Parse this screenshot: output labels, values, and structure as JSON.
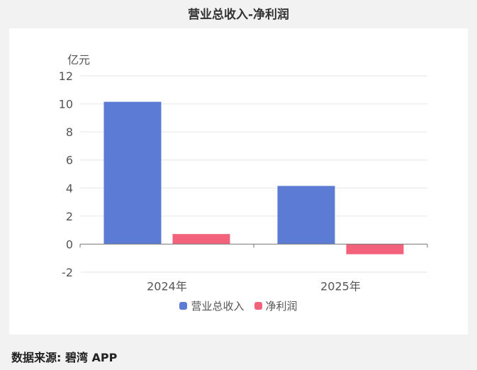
{
  "title": "营业总收入-净利润",
  "source_label": "数据来源: 碧湾 APP",
  "chart_data": {
    "type": "bar",
    "title": "营业总收入-净利润",
    "ylabel": "亿元",
    "xlabel": "",
    "categories": [
      "2024年",
      "2025年"
    ],
    "series": [
      {
        "name": "营业总收入",
        "values": [
          10.15,
          4.15
        ],
        "color": "#5b7bd5"
      },
      {
        "name": "净利润",
        "values": [
          0.72,
          -0.72
        ],
        "color": "#f2637b"
      }
    ],
    "ylim": [
      -2,
      12
    ],
    "yticks": [
      -2,
      0,
      2,
      4,
      6,
      8,
      10,
      12
    ],
    "grid": true,
    "legend": "bottom-center"
  }
}
